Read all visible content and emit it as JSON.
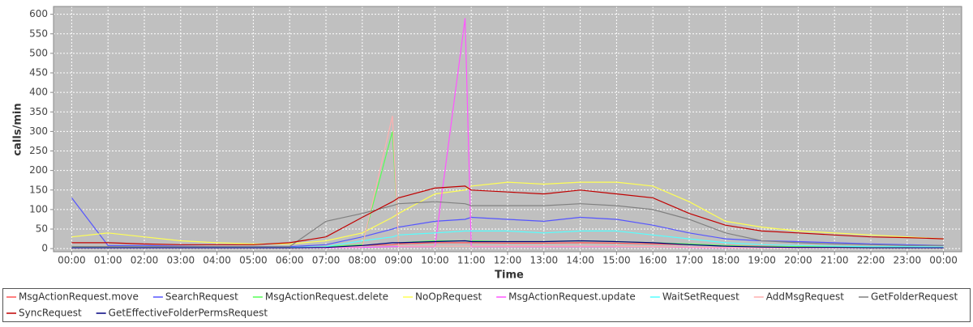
{
  "chart_data": {
    "type": "line",
    "x_label": "Time",
    "y_label": "calls/min",
    "x": [
      0,
      1,
      2,
      3,
      4,
      5,
      6,
      7,
      8,
      8.83,
      9,
      10,
      10.83,
      11,
      12,
      13,
      14,
      15,
      16,
      17,
      18,
      19,
      20,
      21,
      22,
      23,
      24
    ],
    "xlim": [
      -0.5,
      24.5
    ],
    "xticks": [
      {
        "value": 0,
        "label": "00:00"
      },
      {
        "value": 1,
        "label": "01:00"
      },
      {
        "value": 2,
        "label": "02:00"
      },
      {
        "value": 3,
        "label": "03:00"
      },
      {
        "value": 4,
        "label": "04:00"
      },
      {
        "value": 5,
        "label": "05:00"
      },
      {
        "value": 6,
        "label": "06:00"
      },
      {
        "value": 7,
        "label": "07:00"
      },
      {
        "value": 8,
        "label": "08:00"
      },
      {
        "value": 9,
        "label": "09:00"
      },
      {
        "value": 10,
        "label": "10:00"
      },
      {
        "value": 11,
        "label": "11:00"
      },
      {
        "value": 12,
        "label": "12:00"
      },
      {
        "value": 13,
        "label": "13:00"
      },
      {
        "value": 14,
        "label": "14:00"
      },
      {
        "value": 15,
        "label": "15:00"
      },
      {
        "value": 16,
        "label": "16:00"
      },
      {
        "value": 17,
        "label": "17:00"
      },
      {
        "value": 18,
        "label": "18:00"
      },
      {
        "value": 19,
        "label": "19:00"
      },
      {
        "value": 20,
        "label": "20:00"
      },
      {
        "value": 21,
        "label": "21:00"
      },
      {
        "value": 22,
        "label": "22:00"
      },
      {
        "value": 23,
        "label": "23:00"
      },
      {
        "value": 24,
        "label": "00:00"
      }
    ],
    "ylim": [
      -8,
      620
    ],
    "yticks": [
      0,
      50,
      100,
      150,
      200,
      250,
      300,
      350,
      400,
      450,
      500,
      550,
      600
    ],
    "grid": true,
    "series": [
      {
        "name": "MsgActionRequest.move",
        "color": "#ff5555",
        "values": [
          5,
          5,
          4,
          3,
          3,
          3,
          3,
          5,
          8,
          10,
          12,
          15,
          15,
          15,
          14,
          14,
          15,
          14,
          12,
          10,
          8,
          6,
          5,
          5,
          5,
          4,
          4
        ]
      },
      {
        "name": "SearchRequest",
        "color": "#5555ff",
        "values": [
          130,
          8,
          8,
          6,
          5,
          5,
          5,
          10,
          30,
          50,
          55,
          70,
          75,
          80,
          75,
          70,
          80,
          75,
          60,
          40,
          25,
          20,
          18,
          15,
          12,
          10,
          8
        ]
      },
      {
        "name": "MsgActionRequest.delete",
        "color": "#55ff55",
        "values": [
          5,
          3,
          3,
          2,
          2,
          2,
          2,
          5,
          10,
          300,
          15,
          20,
          20,
          20,
          18,
          18,
          20,
          18,
          15,
          12,
          8,
          5,
          5,
          4,
          4,
          3,
          3
        ]
      },
      {
        "name": "NoOpRequest",
        "color": "#ffff55",
        "values": [
          30,
          40,
          30,
          20,
          15,
          12,
          12,
          20,
          40,
          80,
          90,
          140,
          150,
          160,
          170,
          165,
          170,
          170,
          160,
          120,
          70,
          55,
          45,
          40,
          35,
          30,
          25
        ]
      },
      {
        "name": "MsgActionRequest.update",
        "color": "#ff55ff",
        "values": [
          2,
          2,
          2,
          2,
          2,
          2,
          2,
          2,
          3,
          5,
          5,
          5,
          590,
          5,
          5,
          5,
          5,
          5,
          5,
          3,
          2,
          2,
          2,
          2,
          2,
          2,
          2
        ]
      },
      {
        "name": "WaitSetRequest",
        "color": "#55ffff",
        "values": [
          3,
          3,
          3,
          3,
          3,
          3,
          3,
          5,
          20,
          30,
          35,
          40,
          45,
          45,
          45,
          40,
          45,
          45,
          35,
          25,
          15,
          10,
          8,
          6,
          5,
          5,
          4
        ]
      },
      {
        "name": "AddMsgRequest",
        "color": "#ffafaf",
        "values": [
          2,
          2,
          2,
          2,
          2,
          2,
          2,
          3,
          5,
          340,
          6,
          6,
          6,
          6,
          6,
          6,
          6,
          6,
          5,
          4,
          3,
          2,
          2,
          2,
          2,
          2,
          2
        ]
      },
      {
        "name": "GetFolderRequest",
        "color": "#808080",
        "values": [
          5,
          5,
          5,
          5,
          5,
          5,
          5,
          70,
          90,
          110,
          115,
          120,
          115,
          110,
          110,
          110,
          115,
          110,
          100,
          75,
          40,
          20,
          15,
          12,
          10,
          8,
          8
        ]
      },
      {
        "name": "SyncRequest",
        "color": "#c00000",
        "values": [
          15,
          15,
          12,
          10,
          10,
          10,
          15,
          30,
          80,
          120,
          130,
          155,
          160,
          150,
          145,
          140,
          150,
          140,
          130,
          90,
          60,
          45,
          40,
          35,
          30,
          28,
          25
        ]
      },
      {
        "name": "GetEffectiveFolderPermsRequest",
        "color": "#000080",
        "values": [
          2,
          2,
          2,
          2,
          2,
          2,
          2,
          3,
          8,
          15,
          15,
          18,
          20,
          18,
          18,
          18,
          20,
          18,
          15,
          10,
          6,
          4,
          3,
          3,
          2,
          2,
          2
        ]
      }
    ]
  }
}
